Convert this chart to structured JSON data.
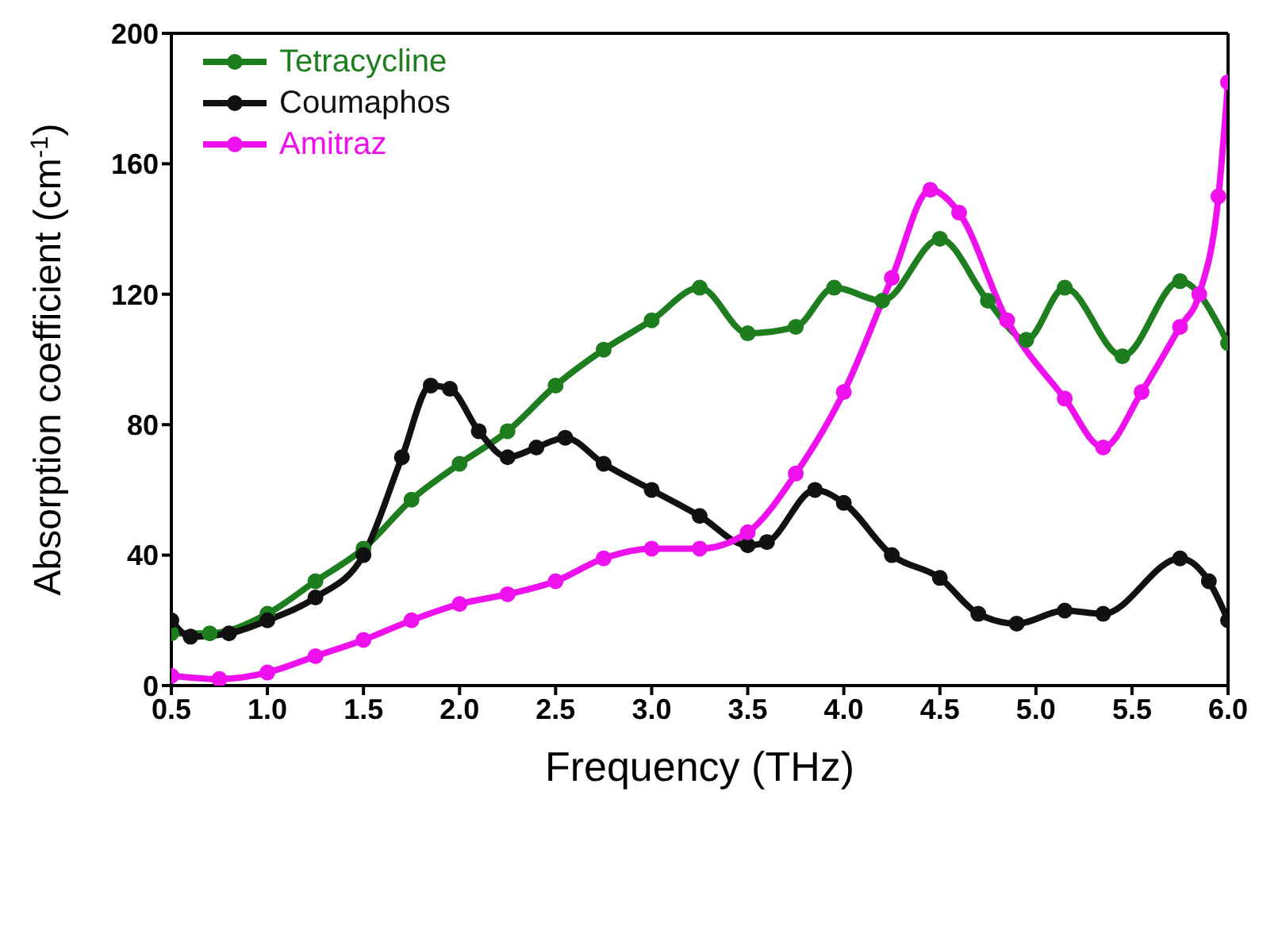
{
  "chart_data": {
    "type": "line",
    "xlabel": "Frequency (THz)",
    "ylabel": "Absorption coefficient (cm$^{-1}$)",
    "xlim": [
      0.5,
      6.0
    ],
    "xticks": [
      {
        "value": 0.5,
        "label": "0.5"
      },
      {
        "value": 1,
        "label": "1.0"
      },
      {
        "value": 1.5,
        "label": "1.5"
      },
      {
        "value": 2,
        "label": "2.0"
      },
      {
        "value": 2.5,
        "label": "2.5"
      },
      {
        "value": 3,
        "label": "3.0"
      },
      {
        "value": 3.5,
        "label": "3.5"
      },
      {
        "value": 4,
        "label": "4.0"
      },
      {
        "value": 4.5,
        "label": "4.5"
      },
      {
        "value": 5,
        "label": "5.0"
      },
      {
        "value": 5.5,
        "label": "5.5"
      },
      {
        "value": 6,
        "label": "6.0"
      }
    ],
    "ylim": [
      0,
      200
    ],
    "yticks": [
      0,
      40,
      80,
      120,
      160,
      200
    ],
    "legend": "top left",
    "marker": "circle",
    "line_style": "solid",
    "series": [
      {
        "name": "Tetracycline",
        "color": "#1e7d1e",
        "x": [
          0.5,
          0.7,
          1.0,
          1.25,
          1.5,
          1.75,
          2.0,
          2.25,
          2.5,
          2.75,
          3.0,
          3.25,
          3.5,
          3.75,
          3.95,
          4.2,
          4.5,
          4.75,
          4.95,
          5.15,
          5.45,
          5.75,
          6.0
        ],
        "values": [
          16,
          16,
          22,
          32,
          42,
          57,
          68,
          78,
          92,
          103,
          112,
          122,
          108,
          110,
          122,
          118,
          137,
          118,
          106,
          122,
          101,
          124,
          105
        ]
      },
      {
        "name": "Coumaphos",
        "color": "#111111",
        "x": [
          0.5,
          0.6,
          0.8,
          1.0,
          1.25,
          1.5,
          1.7,
          1.85,
          1.95,
          2.1,
          2.25,
          2.4,
          2.55,
          2.75,
          3.0,
          3.25,
          3.5,
          3.6,
          3.85,
          4.0,
          4.25,
          4.5,
          4.7,
          4.9,
          5.15,
          5.35,
          5.75,
          5.9,
          6.0
        ],
        "values": [
          20,
          15,
          16,
          20,
          27,
          40,
          70,
          92,
          91,
          78,
          70,
          73,
          76,
          68,
          60,
          52,
          43,
          44,
          60,
          56,
          40,
          33,
          22,
          19,
          23,
          22,
          39,
          32,
          20
        ]
      },
      {
        "name": "Amitraz",
        "color": "#ee11ee",
        "x": [
          0.5,
          0.75,
          1.0,
          1.25,
          1.5,
          1.75,
          2.0,
          2.25,
          2.5,
          2.75,
          3.0,
          3.25,
          3.5,
          3.75,
          4.0,
          4.25,
          4.45,
          4.6,
          4.85,
          5.15,
          5.35,
          5.55,
          5.75,
          5.85,
          5.95,
          6.0
        ],
        "values": [
          3,
          2,
          4,
          9,
          14,
          20,
          25,
          28,
          32,
          39,
          42,
          42,
          47,
          65,
          90,
          125,
          152,
          145,
          112,
          88,
          73,
          90,
          110,
          120,
          150,
          185
        ]
      }
    ]
  }
}
